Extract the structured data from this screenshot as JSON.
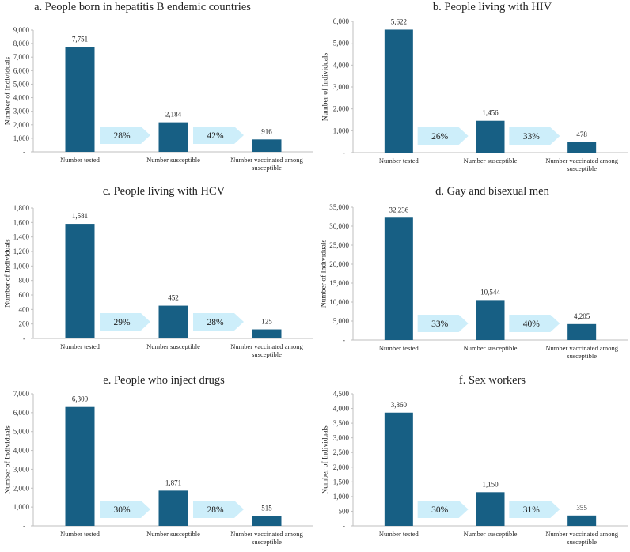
{
  "colors": {
    "bar": "#175f84",
    "arrow": "#cdeefa",
    "axis": "#bfbfbf"
  },
  "chart_data": [
    {
      "type": "bar",
      "title": "a. People born in hepatitis B endemic countries",
      "ylabel": "Number of Individuals",
      "ylim": [
        0,
        9000
      ],
      "ystep": 1000,
      "yticks": [
        "-",
        "1,000",
        "2,000",
        "3,000",
        "4,000",
        "5,000",
        "6,000",
        "7,000",
        "8,000",
        "9,000"
      ],
      "categories": [
        "Number tested",
        "Number susceptible",
        "Number vaccinated among susceptible"
      ],
      "category_lines": [
        [
          "Number tested"
        ],
        [
          "Number susceptible"
        ],
        [
          "Number vaccinated among",
          "susceptible"
        ]
      ],
      "values": [
        7751,
        2184,
        916
      ],
      "value_labels": [
        "7,751",
        "2,184",
        "916"
      ],
      "arrows": [
        "28%",
        "42%"
      ]
    },
    {
      "type": "bar",
      "title": "b. People living with HIV",
      "ylabel": "Number of Individuals",
      "ylim": [
        0,
        6000
      ],
      "ystep": 1000,
      "yticks": [
        "-",
        "1,000",
        "2,000",
        "3,000",
        "4,000",
        "5,000",
        "6,000"
      ],
      "categories": [
        "Number tested",
        "Number susceptible",
        "Number vaccinated among susceptible"
      ],
      "category_lines": [
        [
          "Number tested"
        ],
        [
          "Number susceptible"
        ],
        [
          "Number vaccinated among",
          "susceptible"
        ]
      ],
      "values": [
        5622,
        1456,
        478
      ],
      "value_labels": [
        "5,622",
        "1,456",
        "478"
      ],
      "arrows": [
        "26%",
        "33%"
      ]
    },
    {
      "type": "bar",
      "title": "c. People living with HCV",
      "ylabel": "Number of Individuals",
      "ylim": [
        0,
        1800
      ],
      "ystep": 200,
      "yticks": [
        "-",
        "200",
        "400",
        "600",
        "800",
        "1,000",
        "1,200",
        "1,400",
        "1,600",
        "1,800"
      ],
      "categories": [
        "Number tested",
        "Number susceptible",
        "Number vaccinated among susceptible"
      ],
      "category_lines": [
        [
          "Number tested"
        ],
        [
          "Number susceptible"
        ],
        [
          "Number vaccinated among",
          "susceptible"
        ]
      ],
      "values": [
        1581,
        452,
        125
      ],
      "value_labels": [
        "1,581",
        "452",
        "125"
      ],
      "arrows": [
        "29%",
        "28%"
      ]
    },
    {
      "type": "bar",
      "title": "d. Gay and bisexual men",
      "ylabel": "Number of Individuals",
      "ylim": [
        0,
        35000
      ],
      "ystep": 5000,
      "yticks": [
        "-",
        "5,000",
        "10,000",
        "15,000",
        "20,000",
        "25,000",
        "30,000",
        "35,000"
      ],
      "categories": [
        "Number tested",
        "Number susceptible",
        "Number vaccinated among susceptible"
      ],
      "category_lines": [
        [
          "Number tested"
        ],
        [
          "Number susceptible"
        ],
        [
          "Number vaccinated among",
          "susceptible"
        ]
      ],
      "values": [
        32236,
        10544,
        4205
      ],
      "value_labels": [
        "32,236",
        "10,544",
        "4,205"
      ],
      "arrows": [
        "33%",
        "40%"
      ]
    },
    {
      "type": "bar",
      "title": "e. People who inject drugs",
      "ylabel": "Number of Individuals",
      "ylim": [
        0,
        7000
      ],
      "ystep": 1000,
      "yticks": [
        "-",
        "1,000",
        "2,000",
        "3,000",
        "4,000",
        "5,000",
        "6,000",
        "7,000"
      ],
      "categories": [
        "Number tested",
        "Number susceptible",
        "Number vaccinated among susceptible"
      ],
      "category_lines": [
        [
          "Number tested"
        ],
        [
          "Number susceptible"
        ],
        [
          "Number vaccinated among",
          "susceptible"
        ]
      ],
      "values": [
        6300,
        1871,
        515
      ],
      "value_labels": [
        "6,300",
        "1,871",
        "515"
      ],
      "arrows": [
        "30%",
        "28%"
      ]
    },
    {
      "type": "bar",
      "title": "f. Sex workers",
      "ylabel": "Number of Individuals",
      "ylim": [
        0,
        4500
      ],
      "ystep": 500,
      "yticks": [
        "-",
        "500",
        "1,000",
        "1,500",
        "2,000",
        "2,500",
        "3,000",
        "3,500",
        "4,000",
        "4,500"
      ],
      "categories": [
        "Number tested",
        "Number susceptible",
        "Number vaccinated among susceptible"
      ],
      "category_lines": [
        [
          "Number tested"
        ],
        [
          "Number susceptible"
        ],
        [
          "Number vaccinated among",
          "susceptible"
        ]
      ],
      "values": [
        3860,
        1150,
        355
      ],
      "value_labels": [
        "3,860",
        "1,150",
        "355"
      ],
      "arrows": [
        "30%",
        "31%"
      ]
    }
  ]
}
